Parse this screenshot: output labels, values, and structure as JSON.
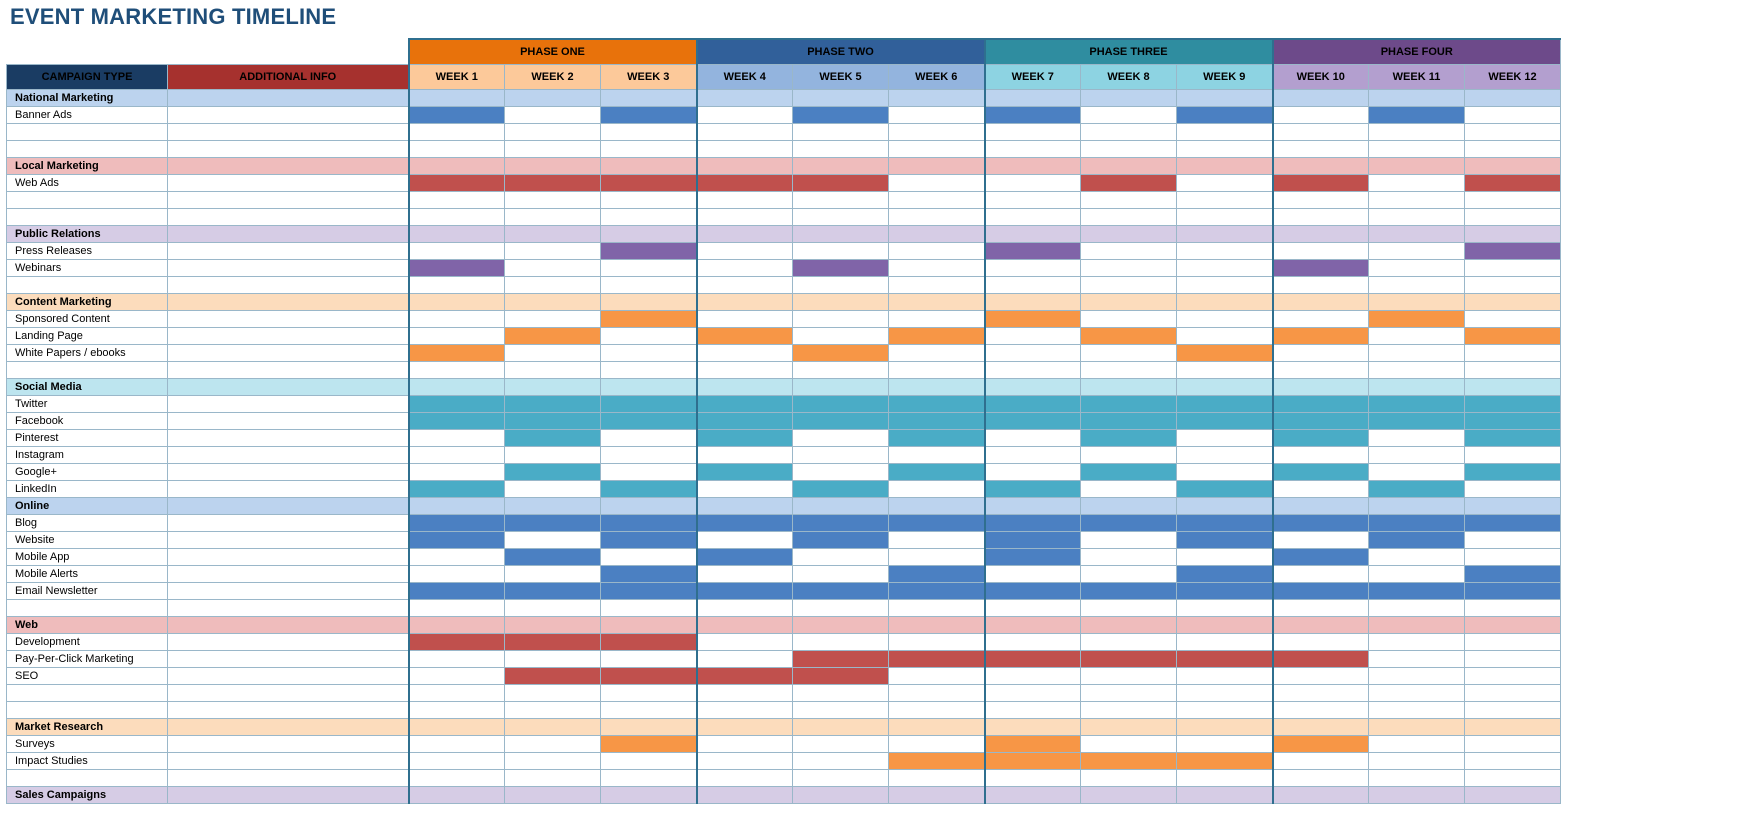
{
  "title": "EVENT MARKETING TIMELINE",
  "colors": {
    "phase_one": "#e8720b",
    "phase_two": "#31609a",
    "phase_three": "#2f8da0",
    "phase_four": "#6d4a8a",
    "campaign_header": "#1a3c63",
    "info_header": "#a6312e",
    "week_p1": "#fcc99a",
    "week_p2": "#93b4de",
    "week_p3": "#8dd3e2",
    "week_p4": "#b39fcf",
    "fill_blue": "#4b80c2",
    "fill_red": "#c0504d",
    "fill_purple": "#8064a8",
    "fill_orange": "#f79646",
    "fill_teal": "#4aacc6",
    "sec_blue": "#bcd3ee",
    "sec_pink": "#efbcbc",
    "sec_lavender": "#d6cce5",
    "sec_peach": "#fcdcbc",
    "sec_lightteal": "#bde5ef"
  },
  "headers": {
    "campaign_type": "CAMPAIGN TYPE",
    "additional_info": "ADDITIONAL INFO"
  },
  "phases": [
    {
      "label": "PHASE ONE",
      "color_key": "phase_one",
      "week_key": "week_p1"
    },
    {
      "label": "PHASE TWO",
      "color_key": "phase_two",
      "week_key": "week_p2"
    },
    {
      "label": "PHASE THREE",
      "color_key": "phase_three",
      "week_key": "week_p3"
    },
    {
      "label": "PHASE FOUR",
      "color_key": "phase_four",
      "week_key": "week_p4"
    }
  ],
  "weeks": [
    "WEEK 1",
    "WEEK 2",
    "WEEK 3",
    "WEEK 4",
    "WEEK 5",
    "WEEK 6",
    "WEEK 7",
    "WEEK 8",
    "WEEK 9",
    "WEEK 10",
    "WEEK 11",
    "WEEK 12"
  ],
  "rows": [
    {
      "type": "section",
      "label": "National Marketing",
      "color": "sec_blue"
    },
    {
      "type": "item",
      "label": "Banner Ads",
      "color": "fill_blue",
      "weeks": [
        1,
        3,
        5,
        7,
        9,
        11
      ]
    },
    {
      "type": "item",
      "label": "",
      "weeks": []
    },
    {
      "type": "item",
      "label": "",
      "weeks": []
    },
    {
      "type": "section",
      "label": "Local Marketing",
      "color": "sec_pink"
    },
    {
      "type": "item",
      "label": "Web Ads",
      "color": "fill_red",
      "weeks": [
        1,
        2,
        3,
        4,
        5,
        8,
        10,
        12
      ]
    },
    {
      "type": "item",
      "label": "",
      "weeks": []
    },
    {
      "type": "item",
      "label": "",
      "weeks": []
    },
    {
      "type": "section",
      "label": "Public Relations",
      "color": "sec_lavender"
    },
    {
      "type": "item",
      "label": "Press Releases",
      "color": "fill_purple",
      "weeks": [
        3,
        7,
        12
      ]
    },
    {
      "type": "item",
      "label": "Webinars",
      "color": "fill_purple",
      "weeks": [
        1,
        5,
        10
      ]
    },
    {
      "type": "item",
      "label": "",
      "weeks": []
    },
    {
      "type": "section",
      "label": "Content Marketing",
      "color": "sec_peach"
    },
    {
      "type": "item",
      "label": "Sponsored Content",
      "color": "fill_orange",
      "weeks": [
        3,
        7,
        11
      ]
    },
    {
      "type": "item",
      "label": "Landing Page",
      "color": "fill_orange",
      "weeks": [
        2,
        4,
        6,
        8,
        10,
        12
      ]
    },
    {
      "type": "item",
      "label": "White Papers / ebooks",
      "color": "fill_orange",
      "weeks": [
        1,
        5,
        9
      ]
    },
    {
      "type": "item",
      "label": "",
      "weeks": []
    },
    {
      "type": "section",
      "label": "Social Media",
      "color": "sec_lightteal"
    },
    {
      "type": "item",
      "label": "Twitter",
      "color": "fill_teal",
      "weeks": [
        1,
        2,
        3,
        4,
        5,
        6,
        7,
        8,
        9,
        10,
        11,
        12
      ]
    },
    {
      "type": "item",
      "label": "Facebook",
      "color": "fill_teal",
      "weeks": [
        1,
        2,
        3,
        4,
        5,
        6,
        7,
        8,
        9,
        10,
        11,
        12
      ]
    },
    {
      "type": "item",
      "label": "Pinterest",
      "color": "fill_teal",
      "weeks": [
        2,
        4,
        6,
        8,
        10,
        12
      ]
    },
    {
      "type": "item",
      "label": "Instagram",
      "weeks": []
    },
    {
      "type": "item",
      "label": "Google+",
      "color": "fill_teal",
      "weeks": [
        2,
        4,
        6,
        8,
        10,
        12
      ]
    },
    {
      "type": "item",
      "label": "LinkedIn",
      "color": "fill_teal",
      "weeks": [
        1,
        3,
        5,
        7,
        9,
        11
      ]
    },
    {
      "type": "section",
      "label": "Online",
      "color": "sec_blue"
    },
    {
      "type": "item",
      "label": "Blog",
      "color": "fill_blue",
      "weeks": [
        1,
        2,
        3,
        4,
        5,
        6,
        7,
        8,
        9,
        10,
        11,
        12
      ]
    },
    {
      "type": "item",
      "label": "Website",
      "color": "fill_blue",
      "weeks": [
        1,
        3,
        5,
        7,
        9,
        11
      ]
    },
    {
      "type": "item",
      "label": "Mobile App",
      "color": "fill_blue",
      "weeks": [
        2,
        4,
        7,
        10
      ]
    },
    {
      "type": "item",
      "label": "Mobile Alerts",
      "color": "fill_blue",
      "weeks": [
        3,
        6,
        9,
        12
      ]
    },
    {
      "type": "item",
      "label": "Email Newsletter",
      "color": "fill_blue",
      "weeks": [
        1,
        2,
        3,
        4,
        5,
        6,
        7,
        8,
        9,
        10,
        11,
        12
      ]
    },
    {
      "type": "item",
      "label": "",
      "weeks": []
    },
    {
      "type": "section",
      "label": "Web",
      "color": "sec_pink"
    },
    {
      "type": "item",
      "label": "Development",
      "color": "fill_red",
      "weeks": [
        1,
        2,
        3
      ]
    },
    {
      "type": "item",
      "label": "Pay-Per-Click Marketing",
      "color": "fill_red",
      "weeks": [
        5,
        6,
        7,
        8,
        9,
        10
      ]
    },
    {
      "type": "item",
      "label": "SEO",
      "color": "fill_red",
      "weeks": [
        2,
        3,
        4,
        5
      ]
    },
    {
      "type": "item",
      "label": "",
      "weeks": []
    },
    {
      "type": "item",
      "label": "",
      "weeks": []
    },
    {
      "type": "section",
      "label": "Market Research",
      "color": "sec_peach"
    },
    {
      "type": "item",
      "label": "Surveys",
      "color": "fill_orange",
      "weeks": [
        3,
        7,
        10
      ]
    },
    {
      "type": "item",
      "label": "Impact Studies",
      "color": "fill_orange",
      "weeks": [
        6,
        7,
        8,
        9
      ]
    },
    {
      "type": "item",
      "label": "",
      "weeks": []
    },
    {
      "type": "section",
      "label": "Sales Campaigns",
      "color": "sec_lavender"
    }
  ]
}
